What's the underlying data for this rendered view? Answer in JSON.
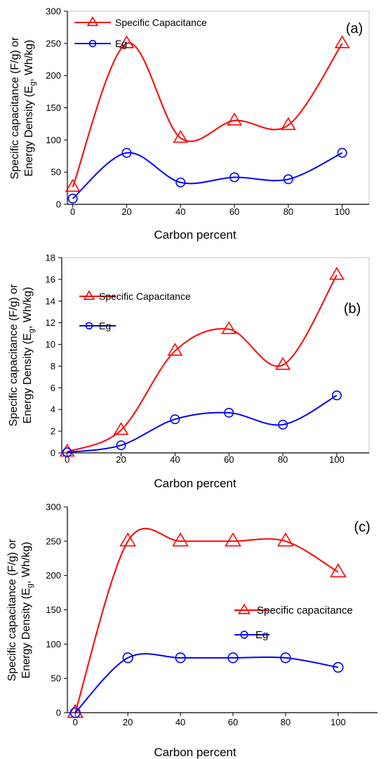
{
  "colors": {
    "capacitance": "#ff0000",
    "energy": "#0000ff",
    "axis": "#000000",
    "frame": "#bfbfbf"
  },
  "chart_data": [
    {
      "type": "line",
      "panel_label": "(a)",
      "xlabel": "Carbon percent",
      "ylabel_line1": "Specific capacitance (F/g) or",
      "ylabel_line2_prefix": "Energy Density (E",
      "ylabel_line2_sub": "g",
      "ylabel_line2_suffix": ", Wh/kg)",
      "x_ticks": [
        "0",
        "20",
        "40",
        "60",
        "80",
        "100"
      ],
      "y_ticks": [
        "0",
        "50",
        "100",
        "150",
        "200",
        "250",
        "300"
      ],
      "xlim": [
        -2,
        110
      ],
      "ylim": [
        0,
        300
      ],
      "legend_position": "top-left",
      "series": [
        {
          "name": "Specific Capacitance",
          "marker": "triangle",
          "color": "#ff0000",
          "x": [
            0,
            20,
            40,
            60,
            80,
            100
          ],
          "y": [
            27,
            250,
            103,
            130,
            123,
            250
          ]
        },
        {
          "name": "Eg",
          "marker": "circle",
          "color": "#0000ff",
          "x": [
            0,
            20,
            40,
            60,
            80,
            100
          ],
          "y": [
            9,
            80,
            34,
            42,
            39,
            80
          ]
        }
      ]
    },
    {
      "type": "line",
      "panel_label": "(b)",
      "xlabel": "Carbon percent",
      "ylabel_line1": "Specific capacitance (F/g) or",
      "ylabel_line2_prefix": "Energy Density (E",
      "ylabel_line2_sub": "g",
      "ylabel_line2_suffix": ", Wh/kg)",
      "x_ticks": [
        "0",
        "20",
        "40",
        "60",
        "80",
        "100"
      ],
      "y_ticks": [
        "0",
        "2",
        "4",
        "6",
        "8",
        "10",
        "12",
        "14",
        "16",
        "18"
      ],
      "xlim": [
        -2,
        112
      ],
      "ylim": [
        0,
        18
      ],
      "legend_position": "upper-left",
      "series": [
        {
          "name": "Specific Capacitance",
          "marker": "triangle",
          "color": "#ff0000",
          "x": [
            0,
            20,
            40,
            60,
            80,
            100
          ],
          "y": [
            0.1,
            2.1,
            9.4,
            11.4,
            8.1,
            16.4
          ]
        },
        {
          "name": "Eg",
          "marker": "circle",
          "color": "#0000ff",
          "x": [
            0,
            20,
            40,
            60,
            80,
            100
          ],
          "y": [
            0.05,
            0.7,
            3.1,
            3.7,
            2.6,
            5.3
          ]
        }
      ]
    },
    {
      "type": "line",
      "panel_label": "(c)",
      "xlabel": "Carbon percent",
      "ylabel_line1": "Specific capacitance (F/g) or",
      "ylabel_line2_prefix": "Energy Density (E",
      "ylabel_line2_sub": "g",
      "ylabel_line2_suffix": ", Wh/kg)",
      "x_ticks": [
        "0",
        "20",
        "40",
        "60",
        "80",
        "100"
      ],
      "y_ticks": [
        "0",
        "50",
        "100",
        "150",
        "200",
        "250",
        "300"
      ],
      "xlim": [
        -3,
        115
      ],
      "ylim": [
        0,
        300
      ],
      "legend_position": "center-right",
      "series": [
        {
          "name": "Specific capacitance",
          "marker": "triangle",
          "color": "#ff0000",
          "x": [
            0,
            20,
            40,
            60,
            80,
            100
          ],
          "y": [
            0,
            250,
            250,
            250,
            250,
            205
          ]
        },
        {
          "name": "Eg",
          "marker": "circle",
          "color": "#0000ff",
          "x": [
            0,
            20,
            40,
            60,
            80,
            100
          ],
          "y": [
            0,
            80,
            80,
            80,
            80,
            66
          ]
        }
      ]
    }
  ]
}
